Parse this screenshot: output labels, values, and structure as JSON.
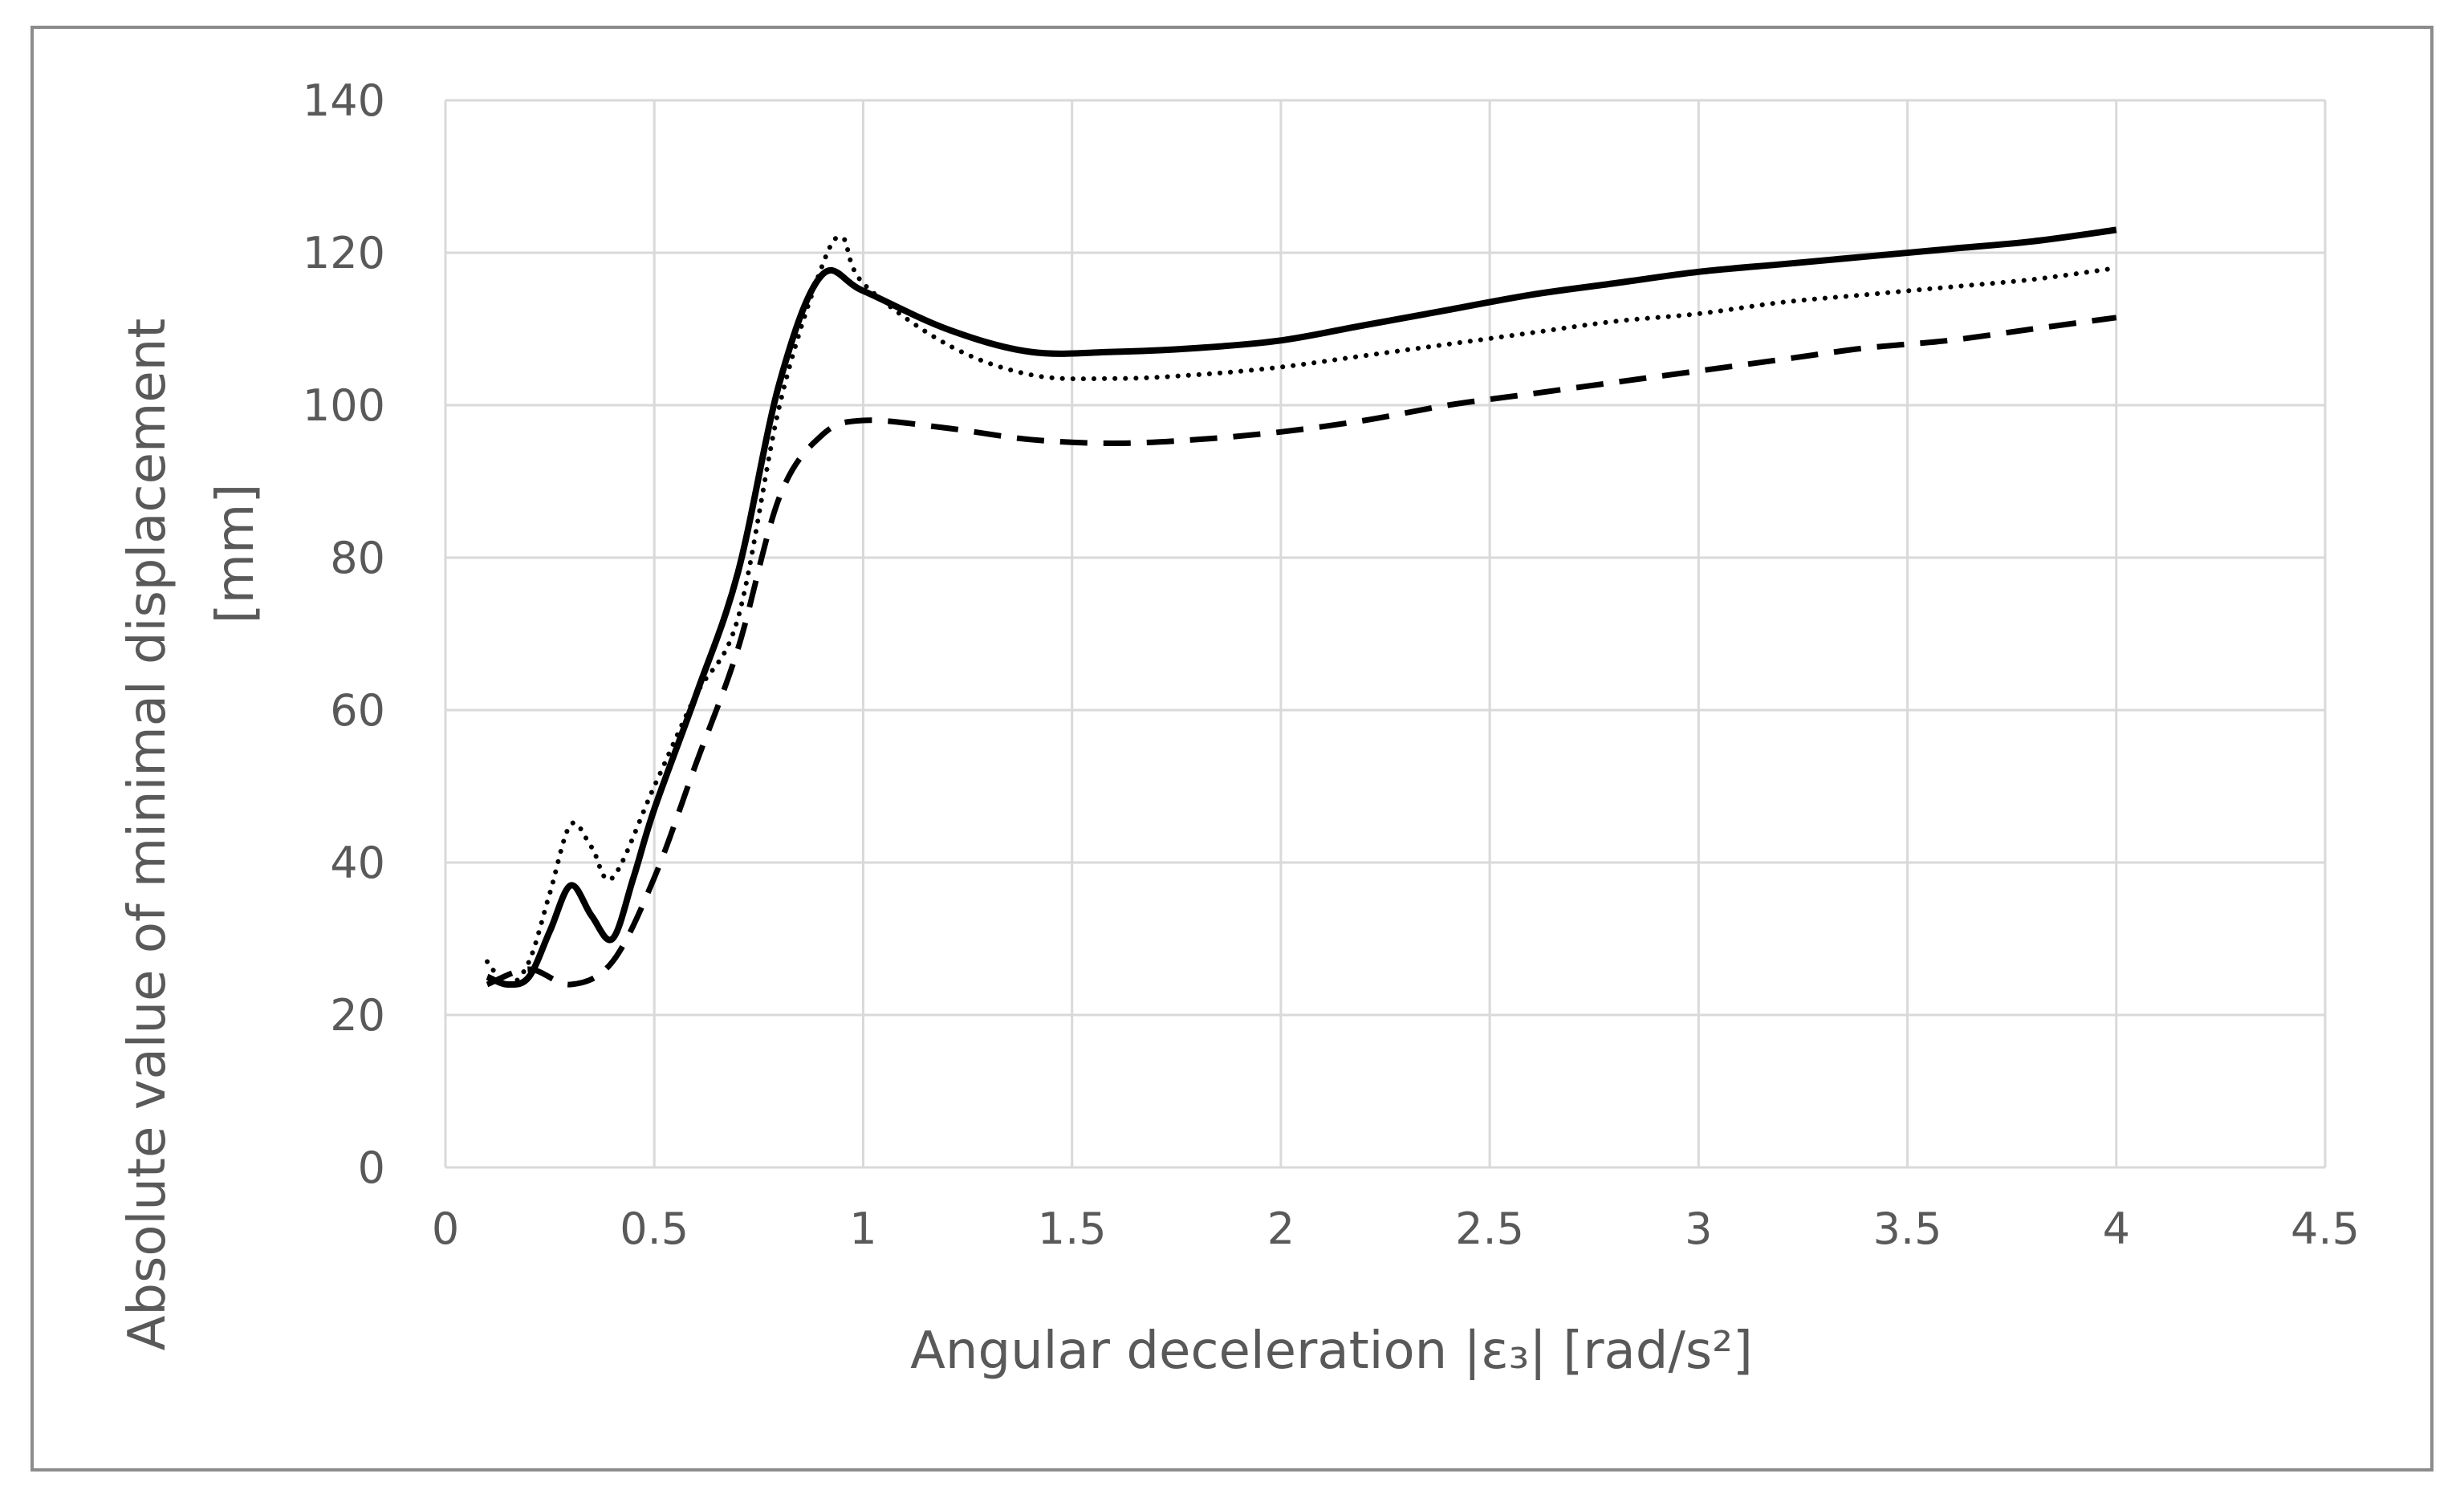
{
  "chart_data": {
    "type": "line",
    "title": "",
    "xlabel": "Angular deceleration |ε₃| [rad/s²]",
    "ylabel_lines": [
      "Absolute value of minimal displacement",
      "[mm]"
    ],
    "xlim": [
      0,
      4.5
    ],
    "ylim": [
      0,
      140
    ],
    "xticks": [
      "0",
      "0.5",
      "1",
      "1.5",
      "2",
      "2.5",
      "3",
      "3.5",
      "4",
      "4.5"
    ],
    "yticks": [
      "0",
      "20",
      "40",
      "60",
      "80",
      "100",
      "120",
      "140"
    ],
    "grid": true,
    "legend": "none",
    "series": [
      {
        "style": "solid",
        "x": [
          0.1,
          0.15,
          0.2,
          0.25,
          0.3,
          0.35,
          0.4,
          0.45,
          0.5,
          0.6,
          0.7,
          0.8,
          0.9,
          1.0,
          1.2,
          1.4,
          1.6,
          1.8,
          2.0,
          2.2,
          2.4,
          2.6,
          2.8,
          3.0,
          3.2,
          3.4,
          3.6,
          3.8,
          4.0
        ],
        "y": [
          25,
          24,
          25,
          31,
          37,
          33,
          30,
          38,
          47,
          62,
          78,
          103,
          117,
          115,
          110,
          107,
          107,
          107.5,
          108.5,
          110.5,
          112.5,
          114.5,
          116,
          117.5,
          118.5,
          119.5,
          120.5,
          121.5,
          123
        ]
      },
      {
        "style": "dotted",
        "x": [
          0.1,
          0.15,
          0.2,
          0.25,
          0.3,
          0.35,
          0.4,
          0.5,
          0.6,
          0.7,
          0.8,
          0.9,
          0.95,
          1.0,
          1.2,
          1.4,
          1.6,
          1.8,
          2.0,
          2.2,
          2.4,
          2.6,
          2.8,
          3.0,
          3.2,
          3.4,
          3.6,
          3.8,
          4.0
        ],
        "y": [
          27,
          24,
          27,
          36,
          45,
          42,
          38,
          50,
          62,
          72,
          100,
          118,
          122,
          116,
          108,
          104,
          103.5,
          104,
          105,
          106.5,
          108,
          109.5,
          111,
          112,
          113.5,
          114.5,
          115.5,
          116.5,
          118
        ]
      },
      {
        "style": "dashed",
        "x": [
          0.1,
          0.2,
          0.3,
          0.4,
          0.5,
          0.6,
          0.7,
          0.8,
          0.9,
          1.0,
          1.2,
          1.4,
          1.6,
          1.8,
          2.0,
          2.2,
          2.4,
          2.6,
          2.8,
          3.0,
          3.2,
          3.4,
          3.6,
          3.8,
          4.0
        ],
        "y": [
          24,
          26,
          24,
          27,
          38,
          53,
          68,
          88,
          96,
          98,
          97,
          95.5,
          95,
          95.5,
          96.5,
          98,
          100,
          101.5,
          103,
          104.5,
          106,
          107.5,
          108.5,
          110,
          111.5
        ]
      }
    ]
  }
}
